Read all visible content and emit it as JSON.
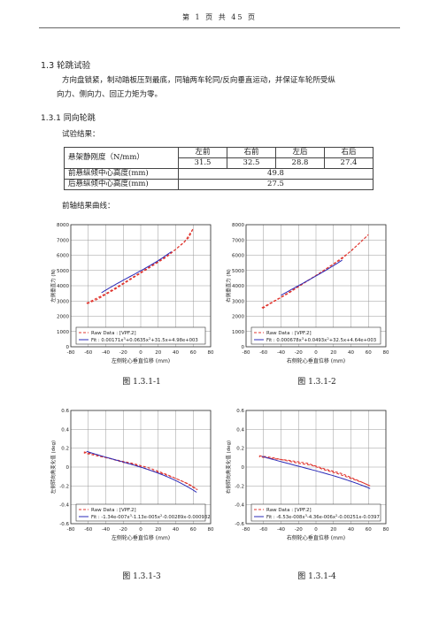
{
  "header": {
    "page_text": "第  1  页       共  45  页"
  },
  "section": {
    "title": "1.3 轮跳试验",
    "description_line1": "方向盘锁紧，制动踏板压到最底，同轴两车轮同/反向垂直运动，并保证车轮所受纵",
    "description_line2": "向力、侧向力、回正力矩为零。"
  },
  "subsection": {
    "title": "1.3.1 同向轮跳",
    "results_label": "试验结果：",
    "curves_label": "前轴结果曲线："
  },
  "table": {
    "row1_label": "悬架静刚度（N/mm）",
    "col_headers": [
      "左前",
      "右前",
      "左后",
      "右后"
    ],
    "stiffness_values": [
      "31.5",
      "32.5",
      "28.8",
      "27.4"
    ],
    "front_label": "前悬纵倾中心高度(mm)",
    "front_value": "49.8",
    "rear_label": "后悬纵倾中心高度(mm)",
    "rear_value": "27.5"
  },
  "chart_data": [
    {
      "type": "line",
      "caption": "图 1.3.1-1",
      "ylabel": "左侧垂直力 (N)",
      "xlabel": "左侧轮心垂直位移 (mm)",
      "xlim": [
        -80,
        80
      ],
      "ylim": [
        0,
        8000
      ],
      "xticks": [
        "-80",
        "-60",
        "-40",
        "-20",
        "0",
        "20",
        "40",
        "60",
        "80"
      ],
      "yticks": [
        "0",
        "1000",
        "2000",
        "3000",
        "4000",
        "5000",
        "6000",
        "7000",
        "8000"
      ],
      "legend_raw": "Raw Data : [VPF.2]",
      "legend_fit": "Fit : 0.00171x",
      "fit_poly": [
        4980,
        31.5,
        0.0635,
        0.00171
      ],
      "raw": [
        [
          -62,
          2850
        ],
        [
          -40,
          3480
        ],
        [
          -20,
          4170
        ],
        [
          0,
          4880
        ],
        [
          20,
          5600
        ],
        [
          40,
          6380
        ],
        [
          55,
          7150
        ],
        [
          60,
          7750
        ],
        [
          50,
          6860
        ],
        [
          30,
          5900
        ],
        [
          10,
          5180
        ],
        [
          -10,
          4470
        ],
        [
          -30,
          3750
        ],
        [
          -50,
          3100
        ],
        [
          -62,
          2800
        ]
      ],
      "fit_x": [
        -45,
        35
      ],
      "grid": true
    },
    {
      "type": "line",
      "caption": "图 1.3.1-2",
      "ylabel": "右侧垂直力 (N)",
      "xlabel": "右侧轮心垂直位移 (mm)",
      "xlim": [
        -80,
        80
      ],
      "ylim": [
        0,
        8000
      ],
      "xticks": [
        "-80",
        "-60",
        "-40",
        "-20",
        "0",
        "20",
        "40",
        "60",
        "80"
      ],
      "yticks": [
        "0",
        "1000",
        "2000",
        "3000",
        "4000",
        "5000",
        "6000",
        "7000",
        "8000"
      ],
      "legend_raw": "Raw Data : [VPF.2]",
      "legend_fit": "Fit : 0.000678x",
      "fit_poly": [
        4640,
        32.5,
        0.0493,
        0.000678
      ],
      "raw": [
        [
          -62,
          2550
        ],
        [
          -40,
          3250
        ],
        [
          -20,
          3960
        ],
        [
          0,
          4680
        ],
        [
          20,
          5430
        ],
        [
          40,
          6260
        ],
        [
          60,
          7350
        ],
        [
          50,
          6800
        ],
        [
          30,
          5780
        ],
        [
          10,
          5040
        ],
        [
          -10,
          4300
        ],
        [
          -30,
          3560
        ],
        [
          -50,
          2900
        ],
        [
          -62,
          2480
        ]
      ],
      "fit_x": [
        -40,
        30
      ],
      "grid": true
    },
    {
      "type": "line",
      "caption": "图 1.3.1-3",
      "ylabel": "左侧转向角变化值 (deg)",
      "xlabel": "左侧轮心垂直位移 (mm)",
      "xlim": [
        -80,
        80
      ],
      "ylim": [
        -0.6,
        0.6
      ],
      "xticks": [
        "-80",
        "-60",
        "-40",
        "-20",
        "0",
        "20",
        "40",
        "60",
        "80"
      ],
      "yticks": [
        "-0.6",
        "-0.4",
        "-0.2",
        "0",
        "0.2",
        "0.4",
        "0.6"
      ],
      "legend_raw": "Raw Data : [VPF.2]",
      "legend_fit": "Fit : -1.34e-007x",
      "fit_poly": [
        -0.000932,
        -0.00289,
        -1.13e-05,
        -1.34e-07
      ],
      "raw": [
        [
          -65,
          0.16
        ],
        [
          -50,
          0.13
        ],
        [
          -35,
          0.09
        ],
        [
          -20,
          0.05
        ],
        [
          -5,
          0.02
        ],
        [
          10,
          -0.03
        ],
        [
          25,
          -0.07
        ],
        [
          40,
          -0.12
        ],
        [
          55,
          -0.18
        ],
        [
          65,
          -0.24
        ],
        [
          50,
          -0.16
        ],
        [
          30,
          -0.08
        ],
        [
          10,
          -0.01
        ],
        [
          -10,
          0.04
        ],
        [
          -30,
          0.08
        ],
        [
          -50,
          0.12
        ],
        [
          -65,
          0.15
        ]
      ],
      "fit_x": [
        -62,
        65
      ],
      "grid": true
    },
    {
      "type": "line",
      "caption": "图 1.3.1-4",
      "ylabel": "右侧转向角变化值 (deg)",
      "xlabel": "右侧轮心垂直位移 (mm)",
      "xlim": [
        -80,
        80
      ],
      "ylim": [
        -0.6,
        0.6
      ],
      "xticks": [
        "-80",
        "-60",
        "-40",
        "-20",
        "0",
        "20",
        "40",
        "60",
        "80"
      ],
      "yticks": [
        "-0.6",
        "-0.4",
        "-0.2",
        "0",
        "0.2",
        "0.4",
        "0.6"
      ],
      "legend_raw": "Raw Data : [VPF.2]",
      "legend_fit": "Fit : -6.53e-008x",
      "fit_poly": [
        -0.0397,
        -0.00251,
        -4.36e-06,
        -6.53e-08
      ],
      "raw": [
        [
          -65,
          0.12
        ],
        [
          -50,
          0.1
        ],
        [
          -35,
          0.07
        ],
        [
          -20,
          0.04
        ],
        [
          -5,
          0.02
        ],
        [
          10,
          -0.03
        ],
        [
          25,
          -0.07
        ],
        [
          40,
          -0.12
        ],
        [
          55,
          -0.17
        ],
        [
          62,
          -0.2
        ],
        [
          50,
          -0.15
        ],
        [
          30,
          -0.07
        ],
        [
          10,
          -0.02
        ],
        [
          -10,
          0.04
        ],
        [
          -30,
          0.07
        ],
        [
          -50,
          0.09
        ],
        [
          -65,
          0.11
        ]
      ],
      "fit_x": [
        -62,
        62
      ],
      "grid": true
    }
  ],
  "chart_legend_fit_tails": [
    "3+0.0635x2+31.5x+4.98e+003",
    "3+0.0493x2+32.5x+4.64e+003",
    "3-1.13e-005x2-0.00289x-0.000932",
    "3-4.36e-006x2-0.00251x-0.0397"
  ],
  "colors": {
    "raw": "#e0362f",
    "fit": "#2b2bb8",
    "grid": "#999999"
  }
}
